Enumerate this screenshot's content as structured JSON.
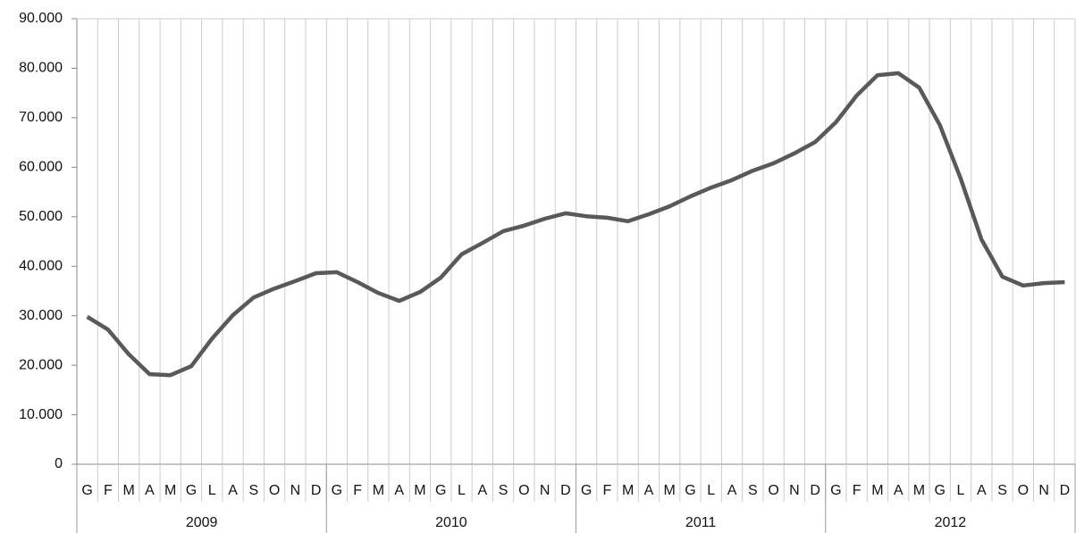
{
  "chart_data": {
    "type": "line",
    "categories": [
      "G",
      "F",
      "M",
      "A",
      "M",
      "G",
      "L",
      "A",
      "S",
      "O",
      "N",
      "D",
      "G",
      "F",
      "M",
      "A",
      "M",
      "G",
      "L",
      "A",
      "S",
      "O",
      "N",
      "D",
      "G",
      "F",
      "M",
      "A",
      "M",
      "G",
      "L",
      "A",
      "S",
      "O",
      "N",
      "D",
      "G",
      "F",
      "M",
      "A",
      "M",
      "G",
      "L",
      "A",
      "S",
      "O",
      "N",
      "D"
    ],
    "groups": [
      "2009",
      "2010",
      "2011",
      "2012"
    ],
    "series": [
      {
        "color": "#595959",
        "values": [
          29800,
          27200,
          22200,
          18200,
          18000,
          19800,
          25400,
          30100,
          33700,
          35500,
          37000,
          38600,
          38800,
          36800,
          34600,
          33000,
          34800,
          37700,
          42400,
          44700,
          47100,
          48200,
          49600,
          50700,
          50100,
          49800,
          49100,
          50500,
          52100,
          54100,
          55900,
          57400,
          59300,
          60800,
          62800,
          65100,
          69100,
          74500,
          78600,
          79000,
          76100,
          68500,
          57700,
          45400,
          37900,
          36100,
          36600,
          36800
        ]
      }
    ],
    "ylim": [
      0,
      90000
    ],
    "yticks": [
      0,
      {
        "value": 10000,
        "label": "10.000"
      },
      {
        "value": 20000,
        "label": "20.000"
      },
      {
        "value": 30000,
        "label": "30.000"
      },
      {
        "value": 40000,
        "label": "40.000"
      },
      {
        "value": 50000,
        "label": "50.000"
      },
      {
        "value": 60000,
        "label": "60.000"
      },
      {
        "value": 70000,
        "label": "70.000"
      },
      {
        "value": 80000,
        "label": "80.000"
      },
      {
        "value": 90000,
        "label": "90.000"
      }
    ],
    "grid": true
  }
}
